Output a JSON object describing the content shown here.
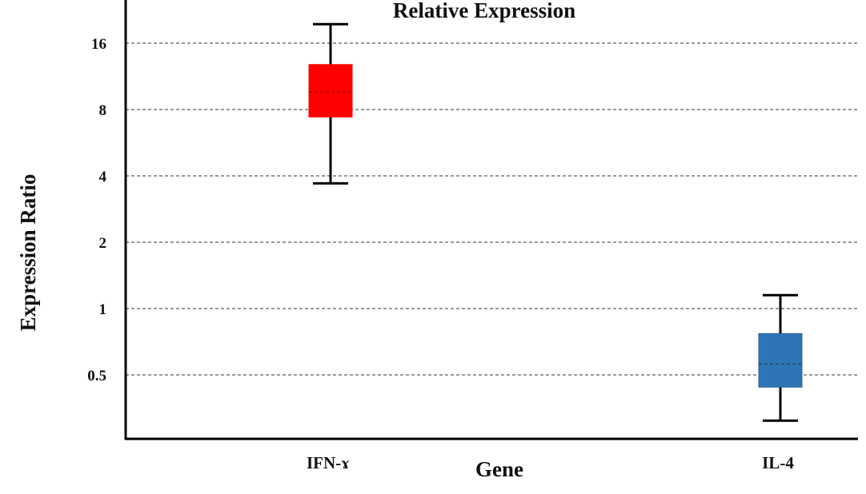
{
  "chart_data": {
    "type": "box",
    "title": "Relative Expression",
    "xlabel": "Gene",
    "ylabel": "Expression  Ratio",
    "yscale": "log2",
    "ylim": [
      0.3,
      22
    ],
    "yticks": [
      {
        "value": 0.5,
        "label": "0.5"
      },
      {
        "value": 1,
        "label": "1"
      },
      {
        "value": 2,
        "label": "2"
      },
      {
        "value": 4,
        "label": "4"
      },
      {
        "value": 8,
        "label": "8"
      },
      {
        "value": 16,
        "label": "16"
      }
    ],
    "grid": true,
    "boxes": [
      {
        "category": "IFN-ɤ",
        "color": "#ff0000",
        "whisker_low": 3.7,
        "q1": 7.4,
        "median": 9.6,
        "q3": 12.8,
        "whisker_high": 19.5
      },
      {
        "category": "IL-4",
        "color": "#2e75b6",
        "whisker_low": 0.31,
        "q1": 0.44,
        "median": 0.56,
        "q3": 0.77,
        "whisker_high": 1.15
      }
    ]
  }
}
